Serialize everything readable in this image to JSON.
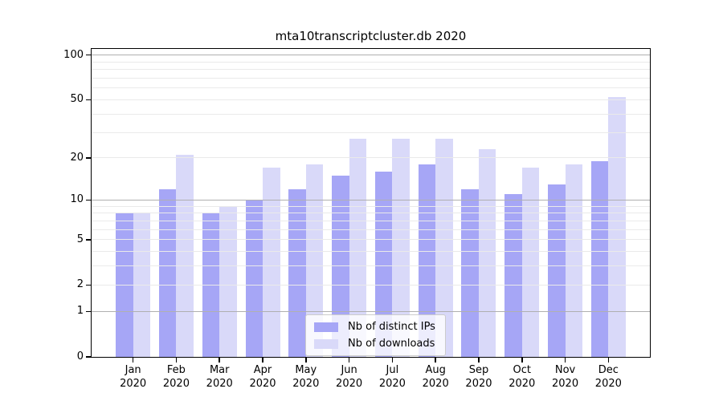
{
  "chart_data": {
    "type": "bar",
    "title": "mta10transcriptcluster.db 2020",
    "categories": [
      "Jan",
      "Feb",
      "Mar",
      "Apr",
      "May",
      "Jun",
      "Jul",
      "Aug",
      "Sep",
      "Oct",
      "Nov",
      "Dec"
    ],
    "x_year_label": "2020",
    "series": [
      {
        "name": "Nb of distinct IPs",
        "color": "#a6a6f6",
        "values": [
          8,
          12,
          8,
          10,
          12,
          15,
          16,
          18,
          12,
          11,
          13,
          19
        ]
      },
      {
        "name": "Nb of downloads",
        "color": "#d9d9f9",
        "values": [
          8,
          21,
          9,
          17,
          18,
          27,
          27,
          27,
          23,
          17,
          18,
          52
        ]
      }
    ],
    "yscale": "log10(value+1)",
    "ylim": [
      0,
      110
    ],
    "yticks": [
      0,
      1,
      2,
      5,
      10,
      20,
      50,
      100
    ],
    "gridlines": {
      "decade": [
        1,
        10,
        100
      ],
      "light": [
        2,
        3,
        4,
        5,
        6,
        7,
        8,
        9,
        20,
        30,
        40,
        50,
        60,
        70,
        80,
        90
      ]
    },
    "grid_on": true,
    "legend_position": "lower center",
    "colors": {
      "decade_gridline": "#b0b0b0",
      "light_gridline": "#eaeaea",
      "axis": "#000000"
    }
  }
}
